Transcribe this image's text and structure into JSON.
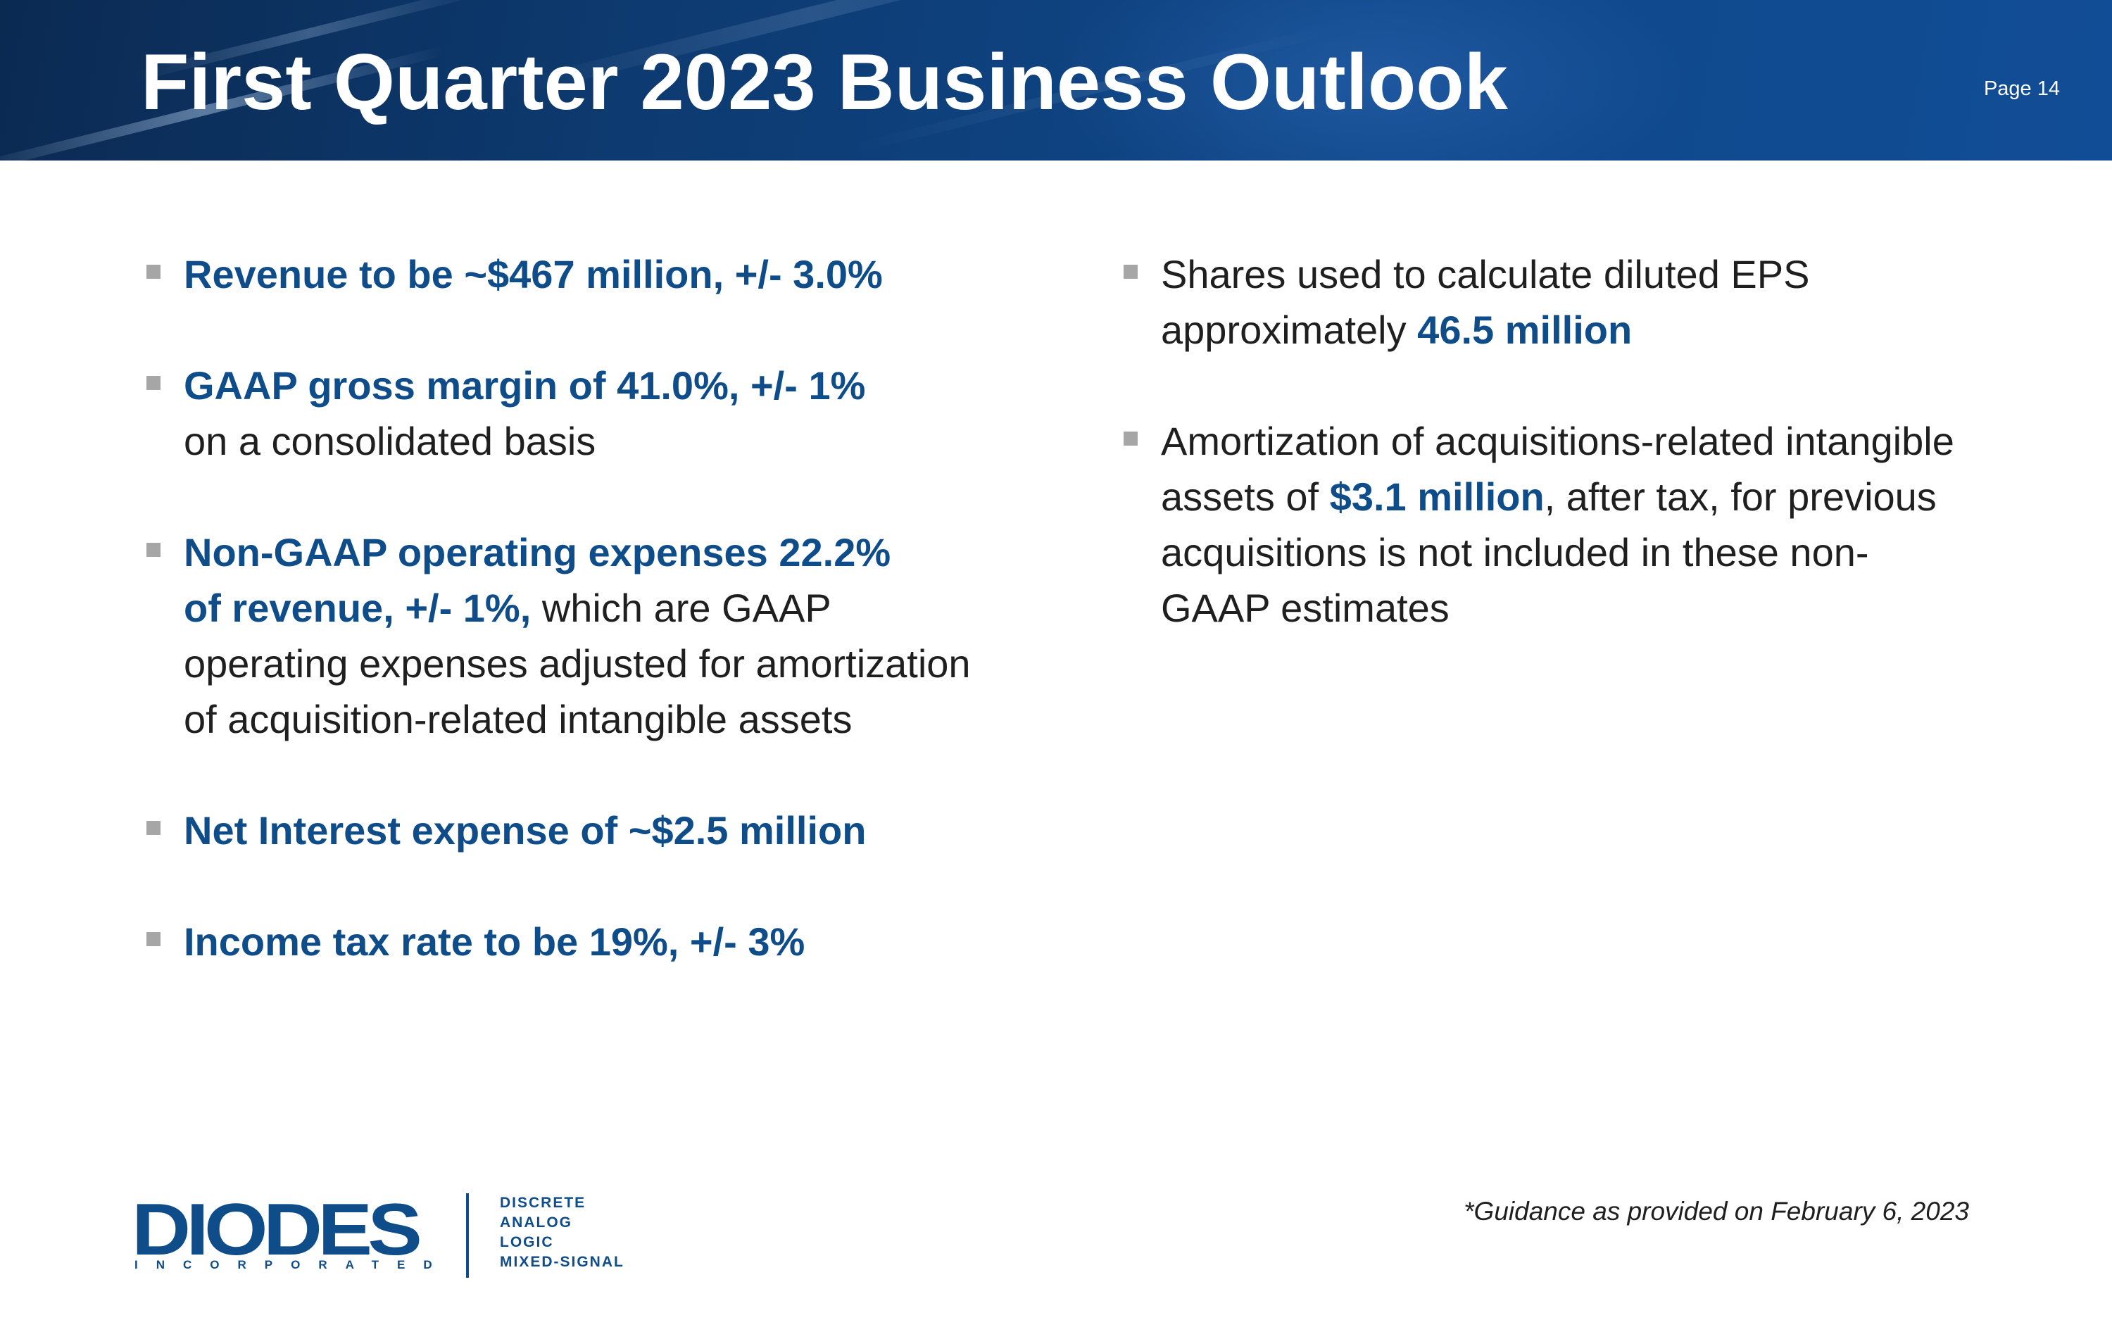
{
  "header": {
    "title": "First Quarter 2023 Business Outlook",
    "page_label": "Page 14"
  },
  "left_bullets": [
    {
      "highlight": "Revenue to be ~$467 million, +/- 3.0%"
    },
    {
      "highlight": "GAAP gross margin of 41.0%, +/- 1%",
      "text": "on a consolidated basis"
    },
    {
      "highlight_line1": "Non-GAAP operating expenses 22.2%",
      "highlight_line2": "of revenue, +/- 1%,",
      "text_line2": " which are GAAP",
      "text_line3": "operating expenses adjusted for amortization",
      "text_line4": "of acquisition-related intangible assets"
    },
    {
      "highlight": "Net Interest expense of ~$2.5 million"
    },
    {
      "highlight": "Income tax rate to be 19%, +/- 3%"
    }
  ],
  "right_bullets": [
    {
      "text_line1": "Shares used to calculate diluted EPS",
      "text_line2": "approximately ",
      "highlight": "46.5 million"
    },
    {
      "text_line1": "Amortization of acquisitions-related intangible",
      "text_line2a": "assets of ",
      "highlight": "$3.1 million",
      "text_line2b": ", after tax, for previous",
      "text_line3": "acquisitions is not included in these non-",
      "text_line4": "GAAP estimates"
    }
  ],
  "footer": {
    "footnote": "*Guidance as provided on February 6, 2023",
    "logo": {
      "wordmark": "DIODES",
      "subline": "INCORPORATED",
      "tags": [
        "DISCRETE",
        "ANALOG",
        "LOGIC",
        "MIXED-SIGNAL"
      ]
    }
  },
  "colors": {
    "header_bg": "#0d3a70",
    "accent_blue": "#0f4c8a",
    "body_text": "#1f1f1f",
    "bullet_marker": "#a6a6a6"
  }
}
